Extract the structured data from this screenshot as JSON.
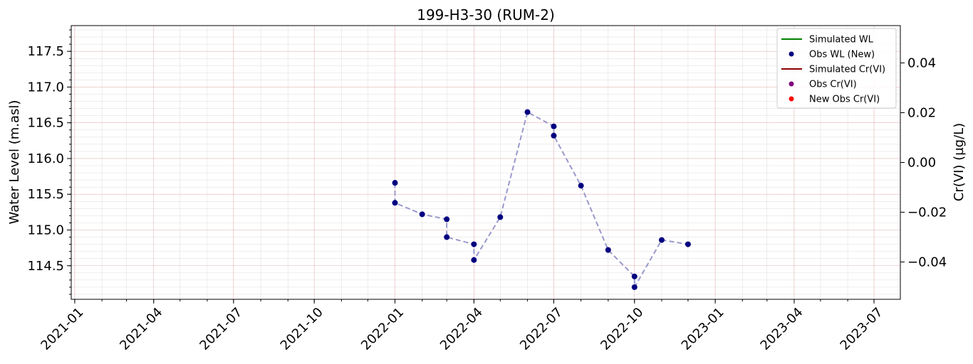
{
  "chart_data": {
    "type": "scatter",
    "title": "199-H3-30 (RUM-2)",
    "ylabel": "Water Level (m.asl)",
    "y2label": "Cr(VI) (µg/L)",
    "xlabel": "",
    "x_ticks": [
      "2021-01",
      "2021-04",
      "2021-07",
      "2021-10",
      "2022-01",
      "2022-04",
      "2022-07",
      "2022-10",
      "2023-01",
      "2023-04",
      "2023-07"
    ],
    "xlim": [
      "2020-12-28",
      "2023-07-31"
    ],
    "ylim": [
      114.03,
      117.86
    ],
    "y_ticks": [
      "114.5",
      "115.0",
      "115.5",
      "116.0",
      "116.5",
      "117.0",
      "117.5"
    ],
    "y2lim": [
      -0.055,
      0.055
    ],
    "y2_ticks": [
      "−0.04",
      "−0.02",
      "0.00",
      "0.02",
      "0.04"
    ],
    "grid": true,
    "legend_position": "top-right",
    "legend": [
      {
        "label": "Simulated WL",
        "kind": "line",
        "color": "#008000"
      },
      {
        "label": "Obs WL (New)",
        "kind": "marker",
        "color": "#000080"
      },
      {
        "label": "Simulated Cr(VI)",
        "kind": "line",
        "color": "#8b0000"
      },
      {
        "label": "Obs Cr(VI)",
        "kind": "marker",
        "color": "#800080"
      },
      {
        "label": "New Obs Cr(VI)",
        "kind": "marker",
        "color": "#ff0000"
      }
    ],
    "series": [
      {
        "name": "Obs WL (New)",
        "color": "#000080",
        "line_color": "#9999cc",
        "points": [
          {
            "x": "2022-01-01",
            "y": 115.66
          },
          {
            "x": "2022-01-01",
            "y": 115.38
          },
          {
            "x": "2022-02-01",
            "y": 115.22
          },
          {
            "x": "2022-03-01",
            "y": 115.15
          },
          {
            "x": "2022-03-01",
            "y": 114.9
          },
          {
            "x": "2022-04-01",
            "y": 114.8
          },
          {
            "x": "2022-04-01",
            "y": 114.58
          },
          {
            "x": "2022-05-01",
            "y": 115.18
          },
          {
            "x": "2022-06-01",
            "y": 116.65
          },
          {
            "x": "2022-07-01",
            "y": 116.45
          },
          {
            "x": "2022-07-01",
            "y": 116.32
          },
          {
            "x": "2022-08-01",
            "y": 115.62
          },
          {
            "x": "2022-09-01",
            "y": 114.72
          },
          {
            "x": "2022-10-01",
            "y": 114.35
          },
          {
            "x": "2022-10-01",
            "y": 114.2
          },
          {
            "x": "2022-11-01",
            "y": 114.86
          },
          {
            "x": "2022-12-01",
            "y": 114.8
          }
        ]
      }
    ]
  }
}
